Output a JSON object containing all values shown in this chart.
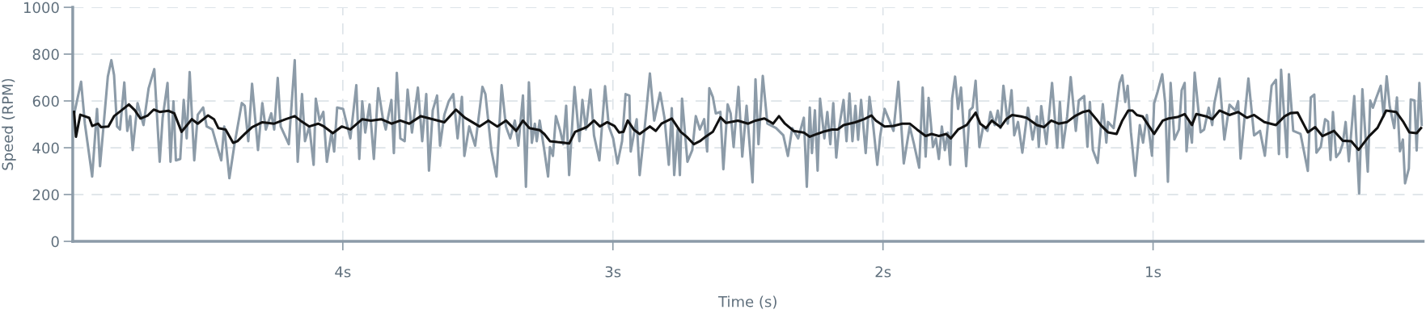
{
  "chart_data": {
    "type": "line",
    "xlabel": "Time (s)",
    "ylabel": "Speed (RPM)",
    "xlim": [
      5,
      0
    ],
    "xticks": [
      {
        "value": 4,
        "label": "4s"
      },
      {
        "value": 3,
        "label": "3s"
      },
      {
        "value": 2,
        "label": "2s"
      },
      {
        "value": 1,
        "label": "1s"
      }
    ],
    "ylim": [
      0,
      1000
    ],
    "yticks": [
      0,
      200,
      400,
      600,
      800,
      1000
    ],
    "grid": true,
    "series": [
      {
        "color": "#8c9ba8",
        "x": [
          4.993,
          4.969,
          4.955,
          4.928,
          4.91,
          4.899,
          4.887,
          4.87,
          4.857,
          4.847,
          4.836,
          4.825,
          4.809,
          4.798,
          4.787,
          4.778,
          4.76,
          4.738,
          4.719,
          4.698,
          4.678,
          4.667,
          4.649,
          4.638,
          4.627,
          4.618,
          4.602,
          4.589,
          4.578,
          4.567,
          4.55,
          4.537,
          4.517,
          4.504,
          4.483,
          4.466,
          4.45,
          4.439,
          4.42,
          4.401,
          4.374,
          4.363,
          4.35,
          4.336,
          4.314,
          4.298,
          4.285,
          4.265,
          4.254,
          4.241,
          4.23,
          4.2,
          4.178,
          4.167,
          4.151,
          4.14,
          4.124,
          4.108,
          4.1,
          4.086,
          4.072,
          4.059,
          4.042,
          4.032,
          4.021,
          3.999,
          3.972,
          3.95,
          3.939,
          3.928,
          3.917,
          3.901,
          3.885,
          3.869,
          3.852,
          3.841,
          3.82,
          3.811,
          3.8,
          3.787,
          3.771,
          3.76,
          3.744,
          3.722,
          3.706,
          3.691,
          3.681,
          3.667,
          3.651,
          3.64,
          3.624,
          3.608,
          3.591,
          3.575,
          3.559,
          3.55,
          3.532,
          3.51,
          3.483,
          3.472,
          3.45,
          3.431,
          3.412,
          3.396,
          3.38,
          3.363,
          3.35,
          3.333,
          3.322,
          3.311,
          3.3,
          3.289,
          3.282,
          3.271,
          3.254,
          3.24,
          3.233,
          3.222,
          3.211,
          3.195,
          3.184,
          3.173,
          3.162,
          3.142,
          3.124,
          3.113,
          3.1,
          3.083,
          3.07,
          3.05,
          3.029,
          3.015,
          2.999,
          2.983,
          2.966,
          2.953,
          2.939,
          2.934,
          2.912,
          2.901,
          2.885,
          2.863,
          2.847,
          2.825,
          2.809,
          2.793,
          2.782,
          2.773,
          2.76,
          2.752,
          2.744,
          2.724,
          2.706,
          2.693,
          2.678,
          2.662,
          2.651,
          2.643,
          2.63,
          2.619,
          2.602,
          2.591,
          2.575,
          2.564,
          2.553,
          2.535,
          2.521,
          2.505,
          2.483,
          2.472,
          2.461,
          2.445,
          2.428,
          2.396,
          2.369,
          2.352,
          2.336,
          2.314,
          2.293,
          2.282,
          2.271,
          2.263,
          2.252,
          2.242,
          2.233,
          2.217,
          2.206,
          2.195,
          2.184,
          2.173,
          2.162,
          2.146,
          2.135,
          2.124,
          2.113,
          2.102,
          2.092,
          2.081,
          2.064,
          2.05,
          2.037,
          2.021,
          2.01,
          1.994,
          1.972,
          1.961,
          1.943,
          1.923,
          1.901,
          1.885,
          1.866,
          1.853,
          1.842,
          1.831,
          1.815,
          1.804,
          1.793,
          1.782,
          1.771,
          1.76,
          1.751,
          1.744,
          1.733,
          1.722,
          1.711,
          1.692,
          1.679,
          1.668,
          1.657,
          1.643,
          1.629,
          1.613,
          1.602,
          1.586,
          1.575,
          1.565,
          1.554,
          1.538,
          1.524,
          1.514,
          1.5,
          1.484,
          1.463,
          1.446,
          1.43,
          1.423,
          1.414,
          1.395,
          1.374,
          1.355,
          1.345,
          1.334,
          1.318,
          1.305,
          1.286,
          1.275,
          1.255,
          1.243,
          1.234,
          1.223,
          1.205,
          1.186,
          1.173,
          1.167,
          1.146,
          1.124,
          1.114,
          1.103,
          1.094,
          1.082,
          1.066,
          1.049,
          1.037,
          1.023,
          1.004,
          0.996,
          0.983,
          0.966,
          0.955,
          0.945,
          0.935,
          0.921,
          0.904,
          0.894,
          0.883,
          0.876,
          0.867,
          0.856,
          0.846,
          0.824,
          0.811,
          0.794,
          0.781,
          0.773,
          0.754,
          0.736,
          0.717,
          0.695,
          0.685,
          0.676,
          0.647,
          0.626,
          0.604,
          0.586,
          0.561,
          0.545,
          0.534,
          0.526,
          0.513,
          0.504,
          0.497,
          0.481,
          0.454,
          0.427,
          0.416,
          0.403,
          0.395,
          0.379,
          0.363,
          0.352,
          0.343,
          0.334,
          0.322,
          0.309,
          0.298,
          0.287,
          0.275,
          0.255,
          0.237,
          0.225,
          0.205,
          0.196,
          0.186,
          0.175,
          0.157,
          0.146,
          0.135,
          0.124,
          0.107,
          0.097,
          0.086,
          0.075,
          0.067,
          0.053,
          0.046,
          0.032,
          0.024,
          0.014,
          0.005
        ],
        "values": [
          553,
          682,
          503,
          277,
          566,
          321,
          478,
          704,
          774,
          711,
          491,
          478,
          679,
          472,
          535,
          390,
          591,
          497,
          654,
          736,
          340,
          528,
          677,
          340,
          598,
          346,
          352,
          604,
          440,
          723,
          346,
          541,
          572,
          491,
          478,
          409,
          346,
          491,
          270,
          415,
          591,
          579,
          428,
          673,
          390,
          591,
          478,
          547,
          478,
          698,
          491,
          415,
          774,
          340,
          629,
          428,
          491,
          327,
          610,
          516,
          553,
          340,
          465,
          384,
          572,
          566,
          440,
          667,
          352,
          598,
          465,
          585,
          352,
          654,
          528,
          478,
          604,
          377,
          720,
          440,
          428,
          648,
          465,
          657,
          428,
          629,
          302,
          560,
          623,
          409,
          541,
          598,
          629,
          440,
          617,
          365,
          491,
          409,
          660,
          629,
          390,
          277,
          667,
          491,
          440,
          516,
          409,
          623,
          233,
          679,
          421,
          503,
          428,
          516,
          390,
          277,
          403,
          365,
          535,
          472,
          415,
          579,
          283,
          660,
          428,
          604,
          478,
          648,
          453,
          346,
          663,
          491,
          440,
          333,
          428,
          629,
          623,
          384,
          522,
          283,
          453,
          717,
          516,
          635,
          528,
          327,
          569,
          283,
          478,
          283,
          610,
          340,
          390,
          535,
          478,
          522,
          384,
          654,
          617,
          547,
          553,
          308,
          585,
          547,
          403,
          660,
          362,
          579,
          252,
          692,
          415,
          707,
          503,
          484,
          453,
          365,
          484,
          440,
          528,
          233,
          572,
          377,
          560,
          302,
          610,
          440,
          553,
          415,
          591,
          358,
          491,
          604,
          428,
          632,
          428,
          579,
          434,
          604,
          377,
          617,
          503,
          327,
          453,
          566,
          503,
          472,
          682,
          333,
          491,
          415,
          315,
          657,
          362,
          613,
          403,
          440,
          352,
          491,
          390,
          465,
          327,
          610,
          704,
          566,
          657,
          321,
          560,
          572,
          686,
          403,
          491,
          472,
          553,
          497,
          559,
          484,
          665,
          503,
          646,
          453,
          510,
          379,
          571,
          435,
          534,
          404,
          578,
          416,
          677,
          400,
          596,
          400,
          534,
          702,
          472,
          602,
          621,
          404,
          596,
          391,
          335,
          586,
          422,
          510,
          484,
          677,
          709,
          596,
          665,
          466,
          280,
          497,
          422,
          540,
          366,
          590,
          640,
          714,
          590,
          255,
          677,
          435,
          478,
          646,
          677,
          385,
          510,
          422,
          721,
          466,
          478,
          571,
          497,
          590,
          696,
          435,
          584,
          559,
          599,
          354,
          696,
          453,
          472,
          366,
          665,
          690,
          373,
          733,
          510,
          360,
          714,
          472,
          459,
          301,
          615,
          627,
          379,
          404,
          522,
          512,
          348,
          553,
          360,
          379,
          416,
          510,
          342,
          621,
          205,
          650,
          298,
          602,
          571,
          609,
          665,
          534,
          705,
          578,
          484,
          615,
          385,
          435,
          248,
          311,
          606,
          602,
          388,
          677,
          497
        ]
      },
      {
        "color": "#111111",
        "x": [
          4.995,
          4.988,
          4.972,
          4.939,
          4.928,
          4.906,
          4.895,
          4.868,
          4.847,
          4.819,
          4.792,
          4.77,
          4.749,
          4.722,
          4.7,
          4.678,
          4.646,
          4.624,
          4.597,
          4.559,
          4.537,
          4.499,
          4.477,
          4.461,
          4.434,
          4.406,
          4.39,
          4.363,
          4.336,
          4.298,
          4.254,
          4.211,
          4.178,
          4.157,
          4.124,
          4.091,
          4.07,
          4.037,
          4.004,
          3.972,
          3.928,
          3.896,
          3.858,
          3.82,
          3.787,
          3.754,
          3.711,
          3.667,
          3.624,
          3.581,
          3.548,
          3.494,
          3.461,
          3.428,
          3.396,
          3.358,
          3.333,
          3.309,
          3.271,
          3.254,
          3.233,
          3.205,
          3.178,
          3.162,
          3.14,
          3.097,
          3.07,
          3.048,
          3.021,
          2.994,
          2.977,
          2.961,
          2.945,
          2.923,
          2.901,
          2.863,
          2.841,
          2.82,
          2.782,
          2.749,
          2.727,
          2.7,
          2.678,
          2.657,
          2.63,
          2.602,
          2.581,
          2.537,
          2.499,
          2.472,
          2.439,
          2.407,
          2.385,
          2.363,
          2.331,
          2.293,
          2.271,
          2.244,
          2.222,
          2.189,
          2.168,
          2.146,
          2.102,
          2.07,
          2.043,
          2.026,
          1.994,
          1.961,
          1.929,
          1.901,
          1.874,
          1.842,
          1.82,
          1.793,
          1.766,
          1.749,
          1.722,
          1.69,
          1.657,
          1.64,
          1.618,
          1.597,
          1.565,
          1.543,
          1.522,
          1.489,
          1.468,
          1.43,
          1.404,
          1.377,
          1.35,
          1.318,
          1.291,
          1.259,
          1.237,
          1.21,
          1.194,
          1.167,
          1.135,
          1.114,
          1.092,
          1.076,
          1.06,
          1.039,
          0.996,
          0.964,
          0.942,
          0.91,
          0.883,
          0.856,
          0.84,
          0.803,
          0.781,
          0.754,
          0.717,
          0.685,
          0.652,
          0.626,
          0.588,
          0.545,
          0.513,
          0.491,
          0.465,
          0.427,
          0.4,
          0.373,
          0.33,
          0.298,
          0.266,
          0.239,
          0.202,
          0.169,
          0.137,
          0.1,
          0.073,
          0.051,
          0.024,
          0.008
        ],
        "values": [
          553,
          447,
          541,
          528,
          493,
          503,
          488,
          491,
          535,
          560,
          585,
          560,
          525,
          538,
          563,
          553,
          558,
          547,
          468,
          522,
          503,
          538,
          522,
          484,
          478,
          421,
          428,
          459,
          488,
          509,
          503,
          522,
          535,
          516,
          491,
          503,
          491,
          462,
          491,
          478,
          522,
          516,
          522,
          503,
          516,
          503,
          535,
          522,
          509,
          563,
          528,
          491,
          516,
          491,
          516,
          472,
          516,
          484,
          475,
          459,
          428,
          424,
          421,
          418,
          468,
          488,
          516,
          491,
          509,
          493,
          465,
          468,
          516,
          478,
          459,
          491,
          472,
          503,
          525,
          468,
          447,
          415,
          428,
          447,
          468,
          530,
          506,
          516,
          503,
          516,
          525,
          503,
          535,
          503,
          472,
          465,
          447,
          459,
          468,
          478,
          478,
          497,
          509,
          522,
          538,
          516,
          491,
          493,
          503,
          503,
          478,
          450,
          459,
          450,
          459,
          440,
          478,
          497,
          550,
          503,
          484,
          516,
          488,
          523,
          540,
          534,
          528,
          497,
          488,
          516,
          503,
          510,
          534,
          553,
          559,
          522,
          497,
          466,
          459,
          516,
          559,
          559,
          540,
          534,
          459,
          516,
          525,
          531,
          544,
          497,
          544,
          534,
          522,
          559,
          540,
          553,
          528,
          540,
          510,
          497,
          534,
          548,
          550,
          466,
          488,
          450,
          472,
          430,
          428,
          391,
          447,
          485,
          559,
          553,
          510,
          466,
          462,
          484
        ]
      }
    ]
  }
}
